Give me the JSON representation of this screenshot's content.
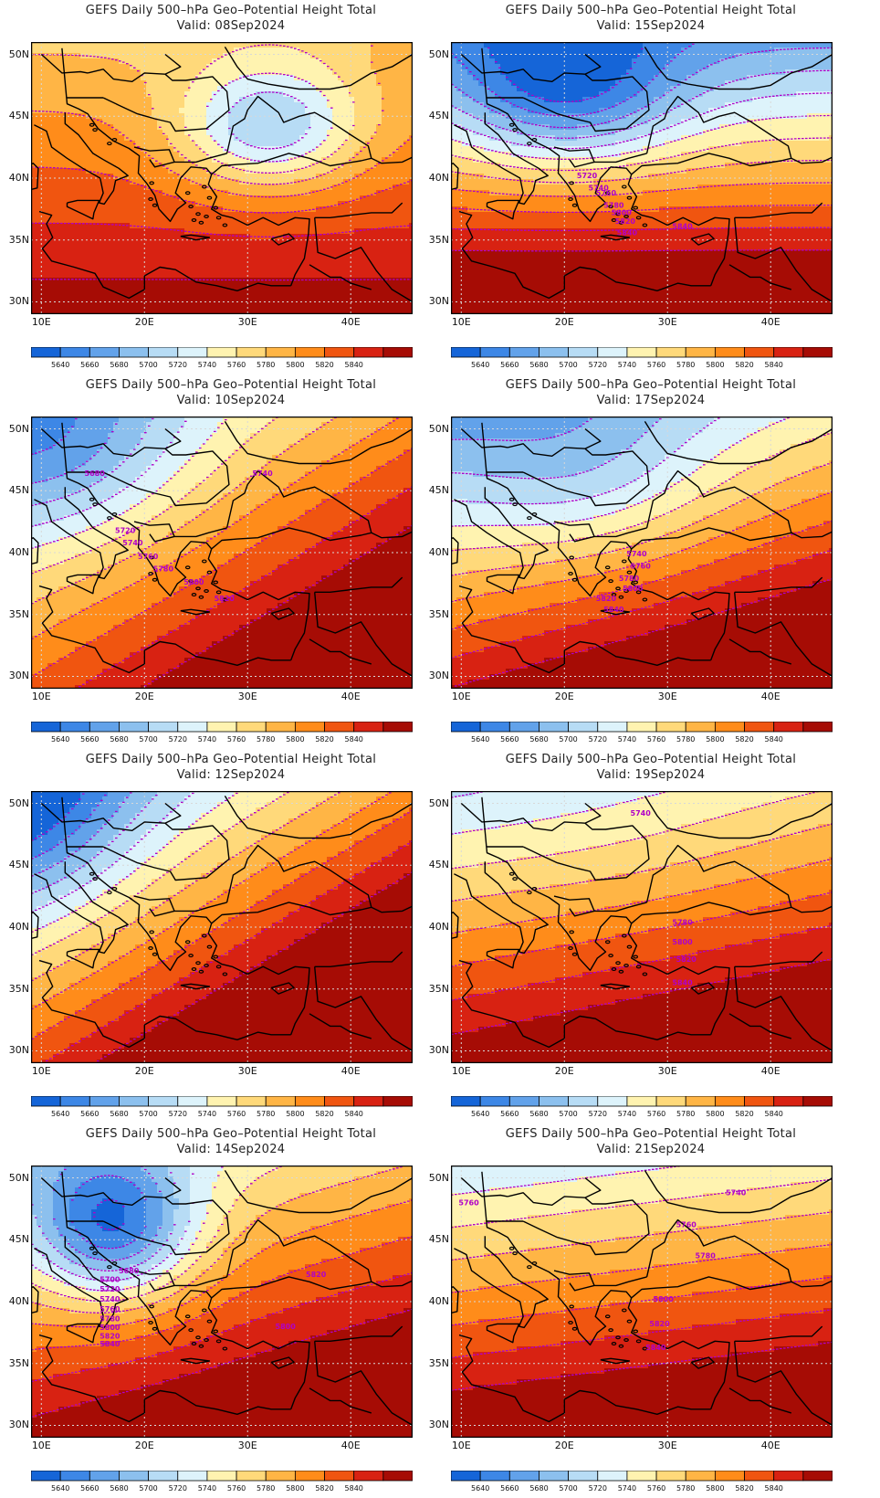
{
  "panels": [
    {
      "title": "GEFS Daily 500–hPa Geo–Potential Height Total",
      "valid": "Valid: 08Sep2024",
      "kind": "ridgeNE",
      "labels": []
    },
    {
      "title": "GEFS Daily 500–hPa Geo–Potential Height Total",
      "valid": "Valid: 15Sep2024",
      "kind": "lowNorth",
      "labels": [
        "5720",
        "5740",
        "5760",
        "5780",
        "5800",
        "5820",
        "5840",
        "5840"
      ]
    },
    {
      "title": "GEFS Daily 500–hPa Geo–Potential Height Total",
      "valid": "Valid: 10Sep2024",
      "kind": "troughNW",
      "labels": [
        "5680",
        "5740",
        "5720",
        "5740",
        "5760",
        "5780",
        "5800",
        "5820"
      ]
    },
    {
      "title": "GEFS Daily 500–hPa Geo–Potential Height Total",
      "valid": "Valid: 17Sep2024",
      "kind": "weakLow",
      "labels": [
        "5740",
        "5760",
        "5780",
        "5800",
        "5820",
        "5840"
      ]
    },
    {
      "title": "GEFS Daily 500–hPa Geo–Potential Height Total",
      "valid": "Valid: 12Sep2024",
      "kind": "deepNW",
      "labels": []
    },
    {
      "title": "GEFS Daily 500–hPa Geo–Potential Height Total",
      "valid": "Valid: 19Sep2024",
      "kind": "flat",
      "labels": [
        "5740",
        "5780",
        "5800",
        "5820",
        "5840"
      ]
    },
    {
      "title": "GEFS Daily 500–hPa Geo–Potential Height Total",
      "valid": "Valid: 14Sep2024",
      "kind": "cutoff",
      "labels": [
        "5680",
        "5700",
        "5720",
        "5740",
        "5760",
        "5780",
        "5800",
        "5820",
        "5820",
        "5800",
        "5840"
      ]
    },
    {
      "title": "GEFS Daily 500–hPa Geo–Potential Height Total",
      "valid": "Valid: 21Sep2024",
      "kind": "zonal",
      "labels": [
        "5760",
        "5740",
        "5760",
        "5780",
        "5800",
        "5820",
        "5840"
      ]
    }
  ],
  "axes": {
    "lat_ticks": [
      "50N",
      "45N",
      "40N",
      "35N",
      "30N"
    ],
    "lon_ticks": [
      "10E",
      "20E",
      "30E",
      "40E"
    ],
    "lat_range": [
      29,
      51
    ],
    "lon_range": [
      9,
      46
    ]
  },
  "colorbar": {
    "labels": [
      "5640",
      "5660",
      "5680",
      "5700",
      "5720",
      "5740",
      "5760",
      "5780",
      "5800",
      "5820",
      "5840"
    ],
    "colors": [
      "#1565d8",
      "#3d87e6",
      "#62a2ea",
      "#8cc0ee",
      "#b7dcf5",
      "#ddf3fb",
      "#fff3b0",
      "#ffd97a",
      "#ffb545",
      "#ff8c1a",
      "#f05510",
      "#d82212",
      "#a60c05"
    ]
  },
  "contour_color": "#b000c8",
  "label_color": "#b000c8"
}
